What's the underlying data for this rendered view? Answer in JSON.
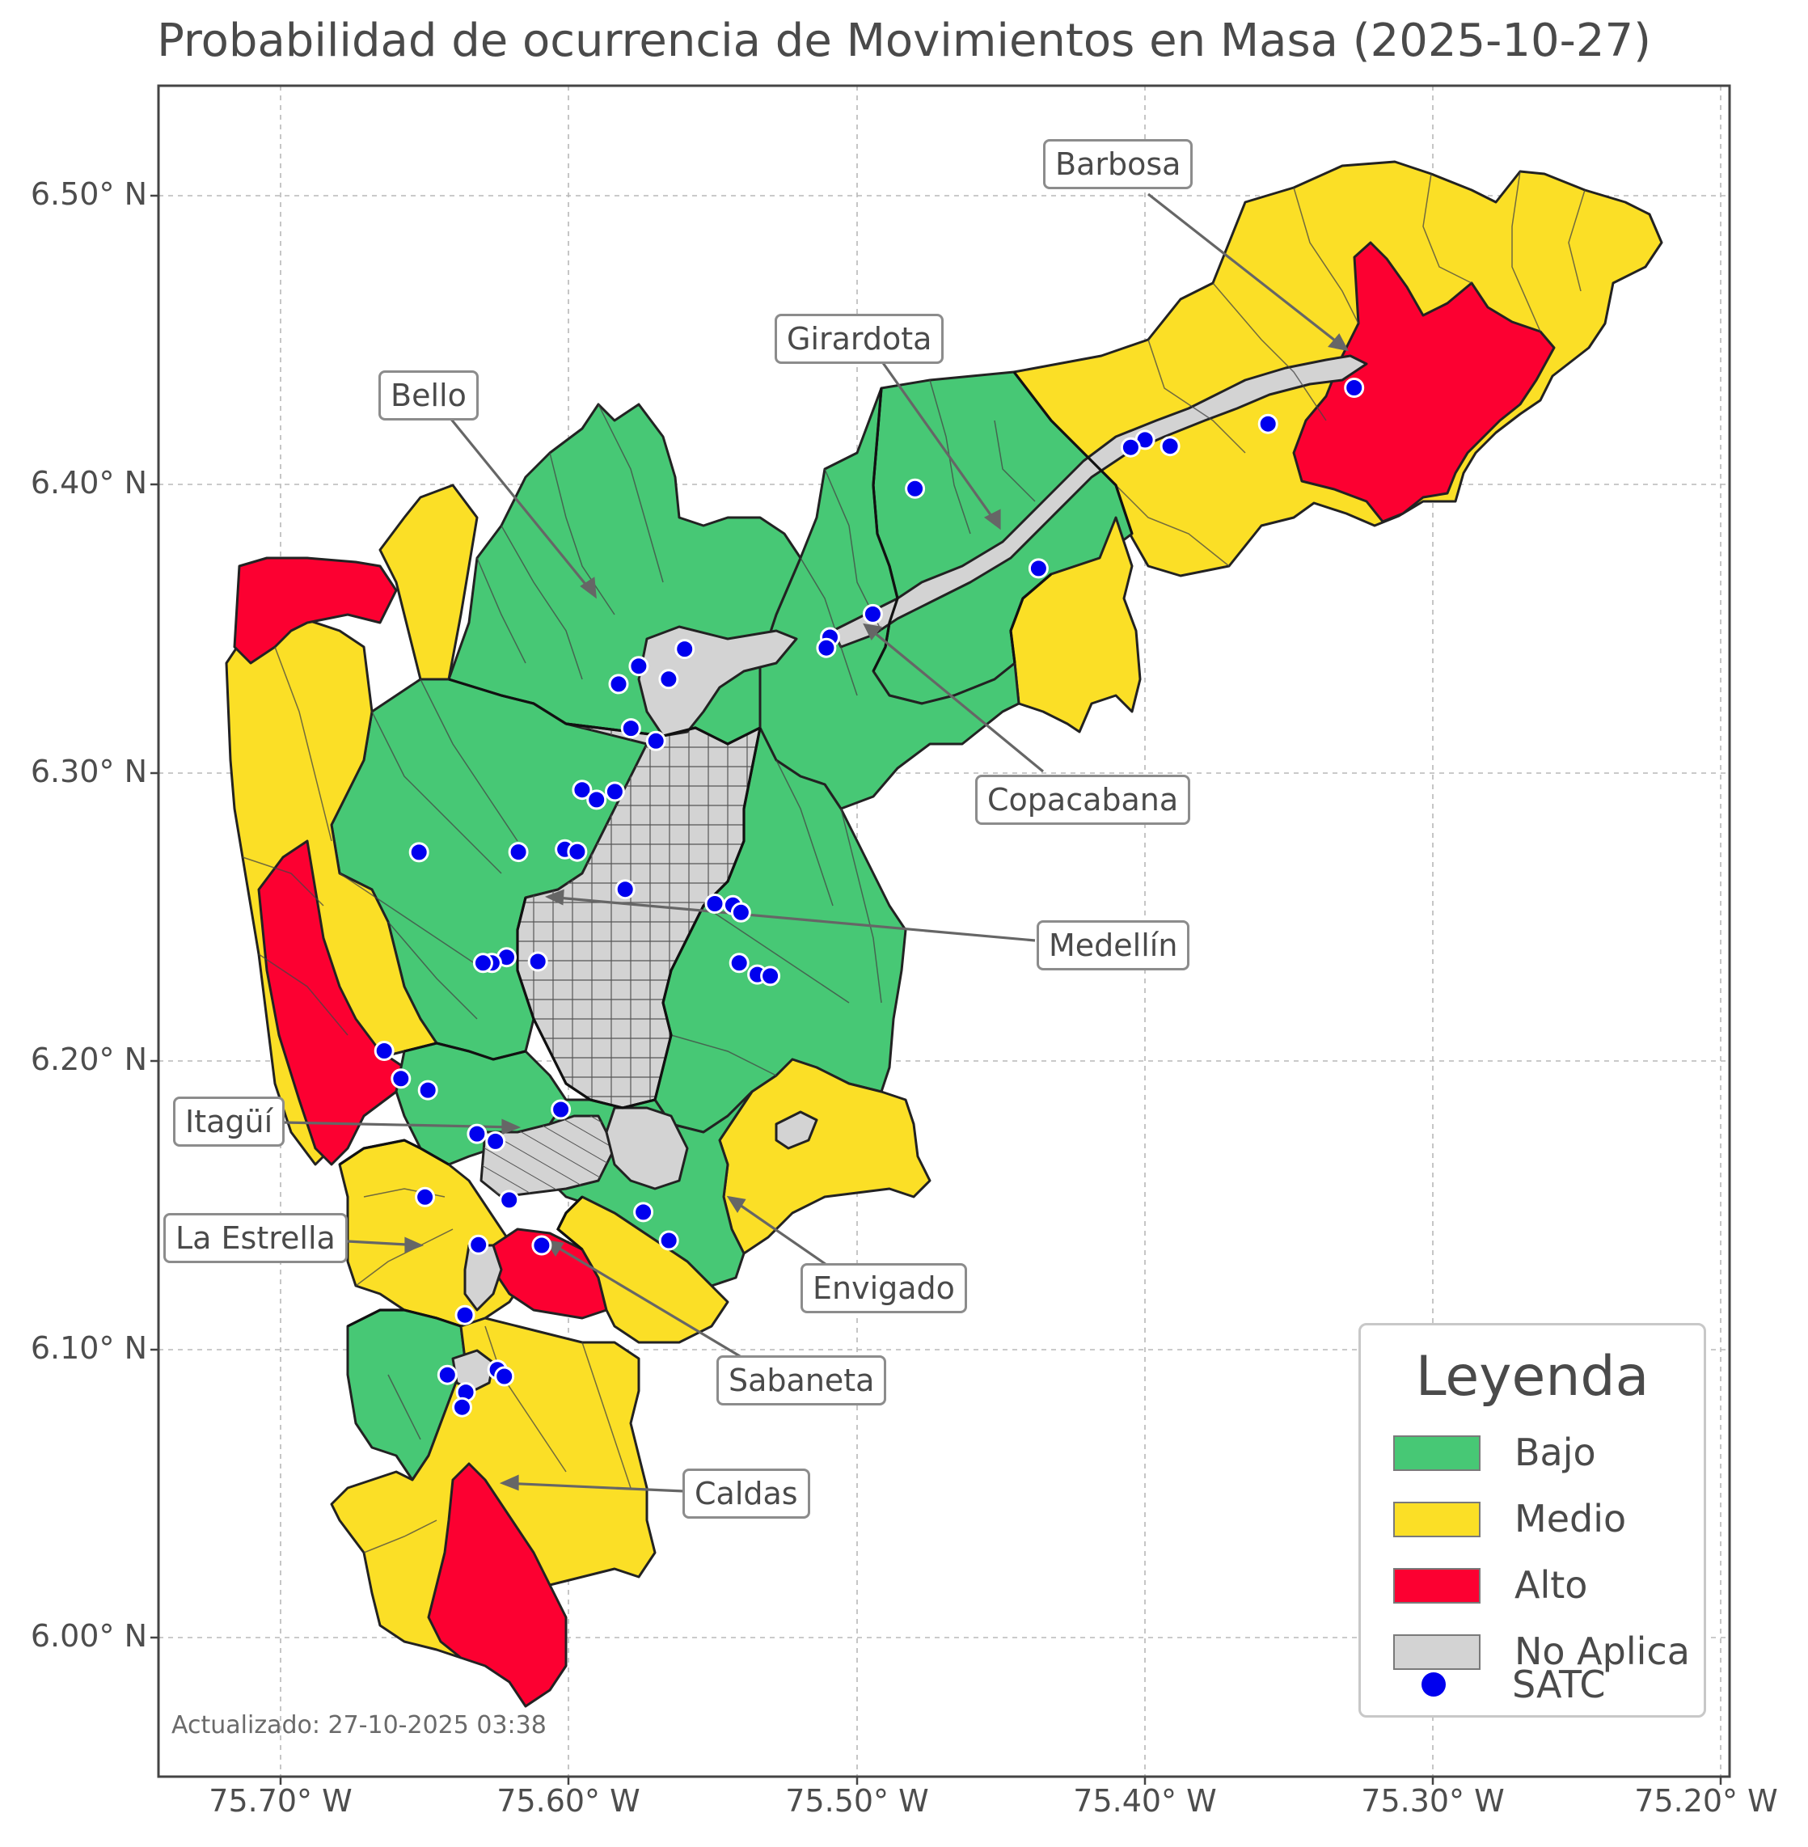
{
  "title": "Probabilidad de ocurrencia de Movimientos en Masa (2025-10-27)",
  "updated": "Actualizado: 27-10-2025 03:38",
  "colors": {
    "bajo": "#47c875",
    "medio": "#fbdf26",
    "alto": "#fc0031",
    "no_aplica": "#d3d3d3",
    "satc": "#0000ee"
  },
  "axes": {
    "y_ticks": [
      "6.50° N",
      "6.40° N",
      "6.30° N",
      "6.20° N",
      "6.10° N",
      "6.00° N"
    ],
    "x_ticks": [
      "75.70° W",
      "75.60° W",
      "75.50° W",
      "75.40° W",
      "75.30° W",
      "75.20° W"
    ],
    "lon_range": [
      -75.744,
      -75.197
    ],
    "lat_range": [
      5.953,
      6.538
    ],
    "grid": "dashed"
  },
  "legend": {
    "title": "Leyenda",
    "items": [
      {
        "label": "Bajo",
        "color": "#47c875",
        "kind": "swatch"
      },
      {
        "label": "Medio",
        "color": "#fbdf26",
        "kind": "swatch"
      },
      {
        "label": "Alto",
        "color": "#fc0031",
        "kind": "swatch"
      },
      {
        "label": "No Aplica",
        "color": "#d3d3d3",
        "kind": "swatch"
      },
      {
        "label": "SATC",
        "color": "#0000ee",
        "kind": "marker"
      }
    ]
  },
  "municipalities": [
    {
      "label": "Barbosa",
      "risk": "Alto",
      "point": [
        -75.328,
        6.443
      ]
    },
    {
      "label": "Girardota",
      "risk": "Bajo",
      "point": [
        -75.452,
        6.38
      ]
    },
    {
      "label": "Bello",
      "risk": "Bajo",
      "point": [
        -75.592,
        6.358
      ]
    },
    {
      "label": "Copacabana",
      "risk": "Bajo",
      "point": [
        -75.5,
        6.352
      ]
    },
    {
      "label": "Medellín",
      "risk": "Bajo",
      "point": [
        -75.61,
        6.258
      ]
    },
    {
      "label": "Itagüí",
      "risk": "Bajo",
      "point": [
        -75.619,
        6.178
      ]
    },
    {
      "label": "Envigado",
      "risk": "Medio",
      "point": [
        -75.545,
        6.153
      ]
    },
    {
      "label": "La Estrella",
      "risk": "Medio",
      "point": [
        -75.65,
        6.137
      ]
    },
    {
      "label": "Sabaneta",
      "risk": "Alto",
      "point": [
        -75.612,
        6.137
      ]
    },
    {
      "label": "Caldas",
      "risk": "Alto",
      "point": [
        -75.627,
        6.055
      ]
    }
  ],
  "satc_stations": [
    [
      -75.3277,
      6.4335
    ],
    [
      -75.3577,
      6.421
    ],
    [
      -75.3918,
      6.4133
    ],
    [
      -75.4005,
      6.4155
    ],
    [
      -75.4055,
      6.4129
    ],
    [
      -75.4806,
      6.3986
    ],
    [
      -75.4376,
      6.371
    ],
    [
      -75.4953,
      6.3552
    ],
    [
      -75.5102,
      6.3472
    ],
    [
      -75.5115,
      6.3435
    ],
    [
      -75.5608,
      6.3431
    ],
    [
      -75.5664,
      6.3327
    ],
    [
      -75.5768,
      6.3372
    ],
    [
      -75.5838,
      6.331
    ],
    [
      -75.5795,
      6.3157
    ],
    [
      -75.5708,
      6.3113
    ],
    [
      -75.5965,
      6.2944
    ],
    [
      -75.5915,
      6.291
    ],
    [
      -75.5851,
      6.2938
    ],
    [
      -75.6533,
      6.2728
    ],
    [
      -75.6187,
      6.2729
    ],
    [
      -75.6025,
      6.2738
    ],
    [
      -75.5982,
      6.273
    ],
    [
      -75.5815,
      6.26
    ],
    [
      -75.5503,
      6.255
    ],
    [
      -75.544,
      6.2545
    ],
    [
      -75.5412,
      6.252
    ],
    [
      -75.5418,
      6.2345
    ],
    [
      -75.5355,
      6.2305
    ],
    [
      -75.531,
      6.23
    ],
    [
      -75.6228,
      6.2365
    ],
    [
      -75.6119,
      6.235
    ],
    [
      -75.6279,
      6.2345
    ],
    [
      -75.631,
      6.2345
    ],
    [
      -75.6654,
      6.2041
    ],
    [
      -75.6596,
      6.1945
    ],
    [
      -75.6502,
      6.1905
    ],
    [
      -75.6039,
      6.1838
    ],
    [
      -75.6331,
      6.1754
    ],
    [
      -75.6267,
      6.1728
    ],
    [
      -75.6512,
      6.1535
    ],
    [
      -75.6219,
      6.1525
    ],
    [
      -75.5752,
      6.1483
    ],
    [
      -75.5663,
      6.1385
    ],
    [
      -75.6326,
      6.137
    ],
    [
      -75.6106,
      6.1368
    ],
    [
      -75.6373,
      6.1127
    ],
    [
      -75.6434,
      6.092
    ],
    [
      -75.626,
      6.0938
    ],
    [
      -75.6236,
      6.0915
    ],
    [
      -75.637,
      6.086
    ],
    [
      -75.6383,
      6.0808
    ]
  ]
}
